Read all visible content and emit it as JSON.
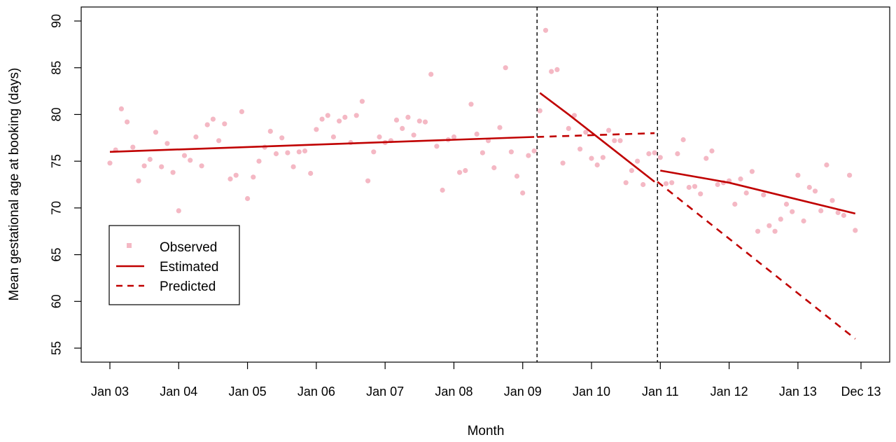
{
  "chart_data": {
    "type": "scatter",
    "title": "",
    "xlabel": "Month",
    "ylabel": "Mean gestational age at booking (days)",
    "xlim": [
      0,
      131
    ],
    "ylim": [
      55,
      90
    ],
    "x_ticks": [
      {
        "x": 0,
        "label": "Jan 03"
      },
      {
        "x": 12,
        "label": "Jan 04"
      },
      {
        "x": 24,
        "label": "Jan 05"
      },
      {
        "x": 36,
        "label": "Jan 06"
      },
      {
        "x": 48,
        "label": "Jan 07"
      },
      {
        "x": 60,
        "label": "Jan 08"
      },
      {
        "x": 72,
        "label": "Jan 09"
      },
      {
        "x": 84,
        "label": "Jan 10"
      },
      {
        "x": 96,
        "label": "Jan 11"
      },
      {
        "x": 108,
        "label": "Jan 12"
      },
      {
        "x": 120,
        "label": "Jan 13"
      },
      {
        "x": 131,
        "label": "Dec 13"
      }
    ],
    "y_ticks": [
      55,
      60,
      65,
      70,
      75,
      80,
      85,
      90
    ],
    "interventions": [
      74.5,
      95.5
    ],
    "colors": {
      "observed": "#f4b8c4",
      "estimated": "#c00000",
      "predicted": "#c00000",
      "intervention_line": "#000000"
    },
    "legend": {
      "position": "bottom-left",
      "entries": [
        {
          "label": "Observed",
          "style": "point"
        },
        {
          "label": "Estimated",
          "style": "solid"
        },
        {
          "label": "Predicted",
          "style": "dashed"
        }
      ]
    },
    "series": [
      {
        "name": "Observed",
        "style": "point",
        "points": [
          [
            0,
            74.8
          ],
          [
            1,
            76.2
          ],
          [
            2,
            80.6
          ],
          [
            3,
            79.2
          ],
          [
            4,
            76.5
          ],
          [
            5,
            72.9
          ],
          [
            6,
            74.5
          ],
          [
            7,
            75.2
          ],
          [
            8,
            78.1
          ],
          [
            9,
            74.4
          ],
          [
            10,
            76.9
          ],
          [
            11,
            73.8
          ],
          [
            12,
            69.7
          ],
          [
            13,
            75.6
          ],
          [
            14,
            75.1
          ],
          [
            15,
            77.6
          ],
          [
            16,
            74.5
          ],
          [
            17,
            78.9
          ],
          [
            18,
            79.5
          ],
          [
            19,
            77.2
          ],
          [
            20,
            79.0
          ],
          [
            21,
            73.1
          ],
          [
            22,
            73.5
          ],
          [
            23,
            80.3
          ],
          [
            24,
            71.0
          ],
          [
            25,
            73.3
          ],
          [
            26,
            75.0
          ],
          [
            27,
            76.5
          ],
          [
            28,
            78.2
          ],
          [
            29,
            75.8
          ],
          [
            30,
            77.5
          ],
          [
            31,
            75.9
          ],
          [
            32,
            74.4
          ],
          [
            33,
            76.0
          ],
          [
            34,
            76.1
          ],
          [
            35,
            73.7
          ],
          [
            36,
            78.4
          ],
          [
            37,
            79.5
          ],
          [
            38,
            79.9
          ],
          [
            39,
            77.6
          ],
          [
            40,
            79.3
          ],
          [
            41,
            79.7
          ],
          [
            42,
            77.0
          ],
          [
            43,
            79.9
          ],
          [
            44,
            81.4
          ],
          [
            45,
            72.9
          ],
          [
            46,
            76.0
          ],
          [
            47,
            77.6
          ],
          [
            48,
            77.0
          ],
          [
            49,
            77.2
          ],
          [
            50,
            79.4
          ],
          [
            51,
            78.5
          ],
          [
            52,
            79.7
          ],
          [
            53,
            77.8
          ],
          [
            54,
            79.3
          ],
          [
            55,
            79.2
          ],
          [
            56,
            84.3
          ],
          [
            57,
            76.6
          ],
          [
            58,
            71.9
          ],
          [
            59,
            77.3
          ],
          [
            60,
            77.6
          ],
          [
            61,
            73.8
          ],
          [
            62,
            74.0
          ],
          [
            63,
            81.1
          ],
          [
            64,
            77.9
          ],
          [
            65,
            75.9
          ],
          [
            66,
            77.2
          ],
          [
            67,
            74.3
          ],
          [
            68,
            78.6
          ],
          [
            69,
            85.0
          ],
          [
            70,
            76.0
          ],
          [
            71,
            73.4
          ],
          [
            72,
            71.6
          ],
          [
            73,
            75.6
          ],
          [
            74,
            76.1
          ],
          [
            75,
            80.4
          ],
          [
            76,
            89.0
          ],
          [
            77,
            84.6
          ],
          [
            78,
            84.8
          ],
          [
            79,
            74.8
          ],
          [
            80,
            78.5
          ],
          [
            81,
            79.9
          ],
          [
            82,
            76.3
          ],
          [
            83,
            78.1
          ],
          [
            84,
            75.3
          ],
          [
            85,
            74.6
          ],
          [
            86,
            75.4
          ],
          [
            87,
            78.3
          ],
          [
            88,
            77.2
          ],
          [
            89,
            77.2
          ],
          [
            90,
            72.7
          ],
          [
            91,
            74.0
          ],
          [
            92,
            75.0
          ],
          [
            93,
            72.5
          ],
          [
            94,
            75.8
          ],
          [
            95,
            75.9
          ],
          [
            96,
            75.4
          ],
          [
            97,
            72.6
          ],
          [
            98,
            72.7
          ],
          [
            99,
            75.8
          ],
          [
            100,
            77.3
          ],
          [
            101,
            72.2
          ],
          [
            102,
            72.3
          ],
          [
            103,
            71.5
          ],
          [
            104,
            75.3
          ],
          [
            105,
            76.1
          ],
          [
            106,
            72.5
          ],
          [
            107,
            72.7
          ],
          [
            108,
            72.9
          ],
          [
            109,
            70.4
          ],
          [
            110,
            73.1
          ],
          [
            111,
            71.6
          ],
          [
            112,
            73.9
          ],
          [
            113,
            67.5
          ],
          [
            114,
            71.4
          ],
          [
            115,
            68.1
          ],
          [
            116,
            67.5
          ],
          [
            117,
            68.8
          ],
          [
            118,
            70.4
          ],
          [
            119,
            69.6
          ],
          [
            120,
            73.5
          ],
          [
            121,
            68.6
          ],
          [
            122,
            72.2
          ],
          [
            123,
            71.8
          ],
          [
            124,
            69.7
          ],
          [
            125,
            74.6
          ],
          [
            126,
            70.8
          ],
          [
            127,
            69.5
          ],
          [
            128,
            69.2
          ],
          [
            129,
            73.5
          ],
          [
            130,
            67.6
          ]
        ]
      },
      {
        "name": "Estimated",
        "style": "solid",
        "segments": [
          [
            [
              0,
              76.0
            ],
            [
              74,
              77.6
            ]
          ],
          [
            [
              75,
              82.3
            ],
            [
              80,
              80.0
            ],
            [
              95,
              72.8
            ]
          ],
          [
            [
              96,
              74.0
            ],
            [
              108,
              72.7
            ],
            [
              130,
              69.4
            ]
          ]
        ]
      },
      {
        "name": "Predicted",
        "style": "dashed",
        "segments": [
          [
            [
              74.5,
              77.6
            ],
            [
              95,
              78.0
            ]
          ],
          [
            [
              95.5,
              72.8
            ],
            [
              130,
              56.0
            ]
          ]
        ]
      }
    ]
  }
}
